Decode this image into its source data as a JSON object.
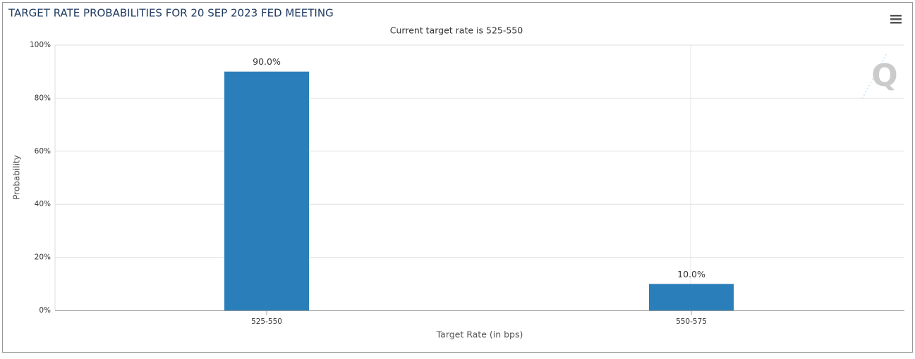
{
  "chart_data": {
    "type": "bar",
    "title": "TARGET RATE PROBABILITIES FOR 20 SEP 2023 FED MEETING",
    "subtitle": "Current target rate is 525-550",
    "y_label": "Probability",
    "x_label": "Target Rate (in bps)",
    "categories": [
      "525-550",
      "550-575"
    ],
    "values": [
      90.0,
      10.0
    ],
    "value_labels": [
      "90.0%",
      "10.0%"
    ],
    "color": "#2a7fba",
    "ylim": [
      0,
      100
    ],
    "yticks": [
      {
        "value": 0,
        "label": "0%"
      },
      {
        "value": 20,
        "label": "20%"
      },
      {
        "value": 40,
        "label": "40%"
      },
      {
        "value": 60,
        "label": "60%"
      },
      {
        "value": 80,
        "label": "80%"
      },
      {
        "value": 100,
        "label": "100%"
      }
    ],
    "grid": true
  }
}
